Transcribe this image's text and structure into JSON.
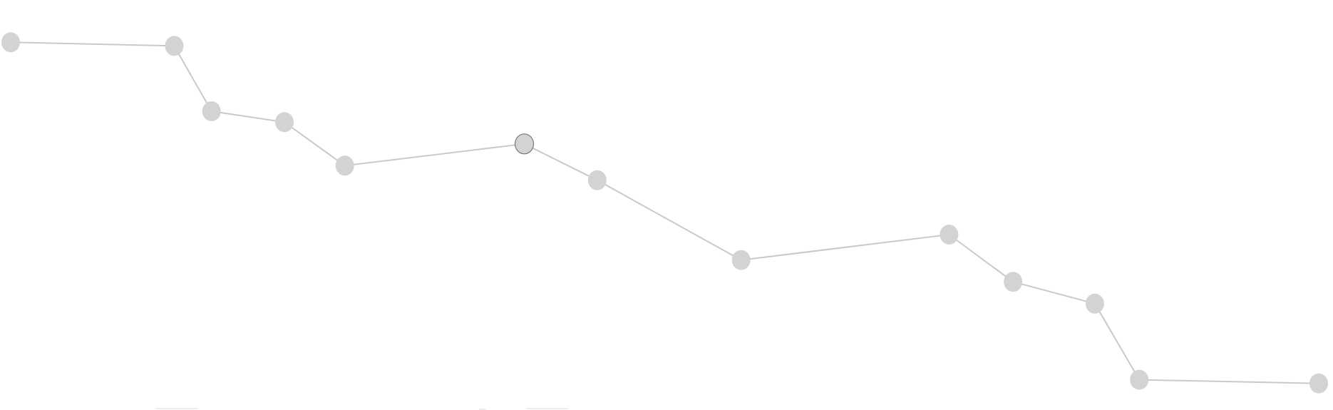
{
  "chart_data": {
    "type": "line",
    "title": "",
    "xlabel": "",
    "ylabel": "",
    "grid": false,
    "legend": "none",
    "x": [
      0,
      92,
      113,
      154,
      188,
      289,
      330,
      411,
      528,
      564,
      610,
      635,
      736
    ],
    "xlim": [
      0,
      736
    ],
    "ylim": [
      0,
      100
    ],
    "series": [
      {
        "values": [
          97,
          96,
          78,
          75,
          63,
          69,
          59,
          37,
          44,
          31,
          25,
          4,
          3
        ],
        "color": "#d3d3d3",
        "highlight_index": 5
      }
    ]
  },
  "colors": {
    "line": "#c9c9c9",
    "point": "#d3d3d3",
    "highlight_stroke": "#777777",
    "background": "#ffffff"
  }
}
